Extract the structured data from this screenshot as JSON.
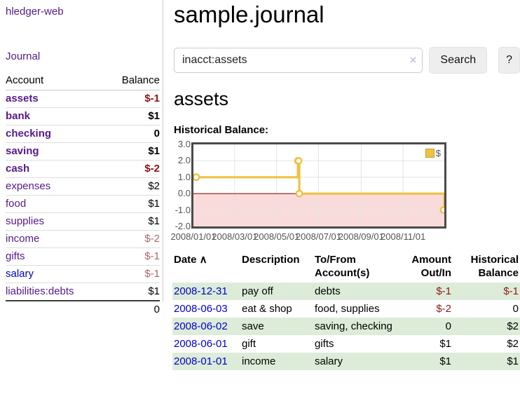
{
  "app": {
    "brand": "hledger-web"
  },
  "sidebar": {
    "journal_label": "Journal",
    "accounts": {
      "header_account": "Account",
      "header_balance": "Balance",
      "rows": [
        {
          "account": "assets",
          "balance": "$-1",
          "depth": 1,
          "bold": true,
          "neg": "strong",
          "link": "purple"
        },
        {
          "account": "bank",
          "balance": "$1",
          "depth": 2,
          "bold": true,
          "neg": "none",
          "link": "purple"
        },
        {
          "account": "checking",
          "balance": "0",
          "depth": 3,
          "bold": true,
          "neg": "none",
          "link": "purple"
        },
        {
          "account": "saving",
          "balance": "$1",
          "depth": 3,
          "bold": true,
          "neg": "none",
          "link": "purple"
        },
        {
          "account": "cash",
          "balance": "$-2",
          "depth": 2,
          "bold": true,
          "neg": "strong",
          "link": "purple"
        },
        {
          "account": "expenses",
          "balance": "$2",
          "depth": 1,
          "bold": false,
          "neg": "none",
          "link": "purple"
        },
        {
          "account": "food",
          "balance": "$1",
          "depth": 2,
          "bold": false,
          "neg": "none",
          "link": "purple"
        },
        {
          "account": "supplies",
          "balance": "$1",
          "depth": 2,
          "bold": false,
          "neg": "none",
          "link": "purple"
        },
        {
          "account": "income",
          "balance": "$-2",
          "depth": 1,
          "bold": false,
          "neg": "soft",
          "link": "purple"
        },
        {
          "account": "gifts",
          "balance": "$-1",
          "depth": 2,
          "bold": false,
          "neg": "soft",
          "link": "purple"
        },
        {
          "account": "salary",
          "balance": "$-1",
          "depth": 2,
          "bold": false,
          "neg": "soft",
          "link": "blue"
        },
        {
          "account": "liabilities:debts",
          "balance": "$1",
          "depth": 1,
          "bold": false,
          "neg": "none",
          "link": "purple"
        }
      ],
      "total": "0"
    }
  },
  "header": {
    "title": "sample.journal"
  },
  "search": {
    "value": "inacct:assets",
    "clear_icon": "×",
    "button_label": "Search",
    "help_label": "?"
  },
  "account_page": {
    "heading": "assets",
    "chart_label": "Historical Balance:"
  },
  "chart_data": {
    "type": "line",
    "title": "Historical Balance:",
    "x_domain": [
      "2008-01-01",
      "2008-12-31"
    ],
    "x_ticks": [
      {
        "date": "2008-01-01",
        "label": "2008/01/01"
      },
      {
        "date": "2008-03-01",
        "label": "2008/03/01"
      },
      {
        "date": "2008-05-01",
        "label": "2008/05/01"
      },
      {
        "date": "2008-07-01",
        "label": "2008/07/01"
      },
      {
        "date": "2008-09-01",
        "label": "2008/09/01"
      },
      {
        "date": "2008-11-01",
        "label": "2008/11/01"
      }
    ],
    "y_ticks": [
      3.0,
      2.0,
      1.0,
      0.0,
      -1.0,
      -2.0
    ],
    "ylim": [
      -2,
      3
    ],
    "series": [
      {
        "name": "$",
        "color": "#edc240",
        "step": true,
        "points": [
          [
            "2008-01-01",
            1
          ],
          [
            "2008-06-01",
            2
          ],
          [
            "2008-06-02",
            2
          ],
          [
            "2008-06-03",
            0
          ],
          [
            "2008-12-31",
            -1
          ]
        ]
      }
    ],
    "legend": {
      "label": "$",
      "position": "top-right"
    },
    "grid": true,
    "negative_region_color": "#fadbdb",
    "zero_line_color": "#991111",
    "gridline_color": "#e4e4e4",
    "border_color": "#4a4a4a"
  },
  "register": {
    "headers": [
      {
        "line1": "Date",
        "line2": "",
        "sort": "∧",
        "align": "left"
      },
      {
        "line1": "Description",
        "line2": "",
        "sort": "",
        "align": "left"
      },
      {
        "line1": "To/From",
        "line2": "Account(s)",
        "sort": "",
        "align": "left"
      },
      {
        "line1": "Amount",
        "line2": "Out/In",
        "sort": "",
        "align": "right"
      },
      {
        "line1": "Historical",
        "line2": "Balance",
        "sort": "",
        "align": "right"
      }
    ],
    "rows": [
      {
        "date": "2008-12-31",
        "description": "pay off",
        "accounts": "debts",
        "amount": "$-1",
        "balance": "$-1"
      },
      {
        "date": "2008-06-03",
        "description": "eat & shop",
        "accounts": "food, supplies",
        "amount": "$-2",
        "balance": "0"
      },
      {
        "date": "2008-06-02",
        "description": "save",
        "accounts": "saving, checking",
        "amount": "0",
        "balance": "$2"
      },
      {
        "date": "2008-06-01",
        "description": "gift",
        "accounts": "gifts",
        "amount": "$1",
        "balance": "$2"
      },
      {
        "date": "2008-01-01",
        "description": "income",
        "accounts": "salary",
        "amount": "$1",
        "balance": "$1"
      }
    ]
  },
  "colors": {
    "link_purple": "#551a8b",
    "link_blue": "#0000cc",
    "negative_strong": "#8b1313",
    "negative_soft": "#b06565",
    "row_stripe_green": "#ddecd9",
    "series_yellow": "#edc240"
  }
}
